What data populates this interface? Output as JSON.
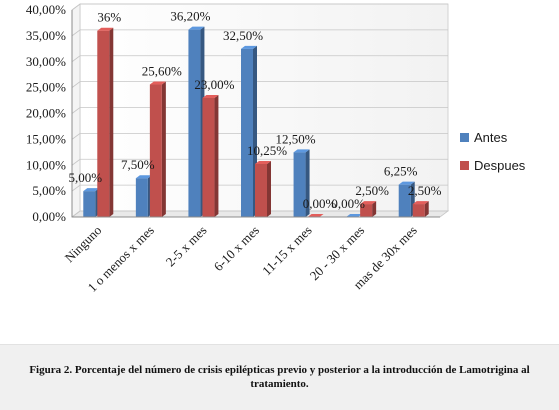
{
  "chart_data": {
    "type": "bar",
    "categories": [
      "Ninguno",
      "1 o menos x mes",
      "2-5 x mes",
      "6-10 x mes",
      "11-15 x mes",
      "20 - 30 x mes",
      "mas de 30x mes"
    ],
    "series": [
      {
        "name": "Antes",
        "color": "#4f81bd",
        "values": [
          5.0,
          7.5,
          36.2,
          32.5,
          12.5,
          0.0,
          6.25
        ],
        "labels": [
          "5,00%",
          "7,50%",
          "36,20%",
          "32,50%",
          "12,50%",
          "0,00%",
          "6,25%"
        ]
      },
      {
        "name": "Despues",
        "color": "#c0504d",
        "values": [
          36.0,
          25.6,
          23.0,
          10.25,
          0.0,
          2.5,
          2.5
        ],
        "labels": [
          "36%",
          "25,60%",
          "23,00%",
          "10,25%",
          "0,00%",
          "2,50%",
          "2,50%"
        ]
      }
    ],
    "yticks": [
      "0,00%",
      "5,00%",
      "10,00%",
      "15,00%",
      "20,00%",
      "25,00%",
      "30,00%",
      "35,00%",
      "40,00%"
    ],
    "ylim": [
      0,
      40
    ],
    "grid": true,
    "legend": "right",
    "title": "",
    "xlabel": "",
    "ylabel": ""
  },
  "caption": "Figura 2. Porcentaje del número de crisis epilépticas previo y posterior a la introducción de Lamotrigina al tratamiento."
}
